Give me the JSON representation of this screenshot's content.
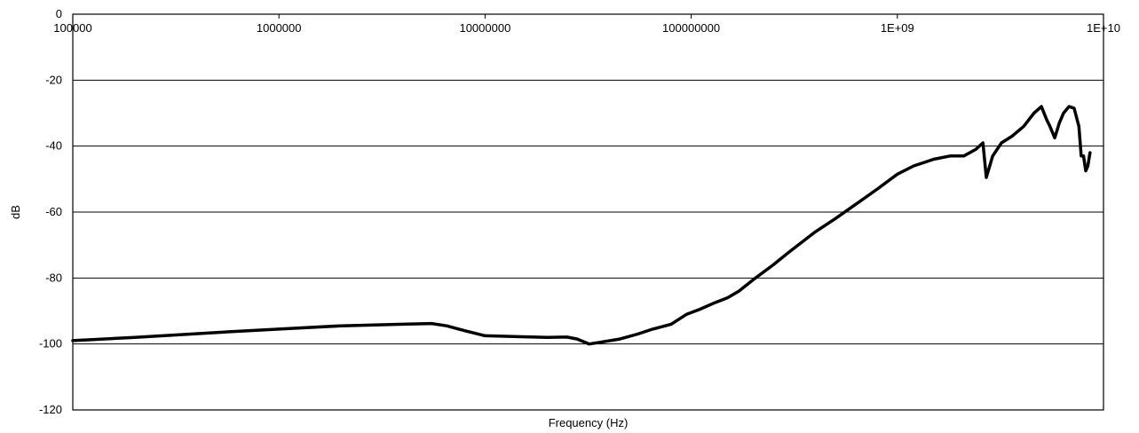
{
  "chart_data": {
    "type": "line",
    "title": "",
    "xlabel": "Frequency (Hz)",
    "ylabel": "dB",
    "x_scale": "log",
    "xlim": [
      100000,
      10000000000
    ],
    "ylim": [
      -120,
      0
    ],
    "grid": "horizontal",
    "legend": "none",
    "x_tick_labels": [
      "100000",
      "1000000",
      "10000000",
      "100000000",
      "1E+09",
      "1E+10"
    ],
    "x_tick_values": [
      100000,
      1000000,
      10000000,
      100000000,
      1000000000,
      10000000000
    ],
    "y_tick_labels": [
      "0",
      "-20",
      "-40",
      "-60",
      "-80",
      "-100",
      "-120"
    ],
    "y_tick_values": [
      0,
      -20,
      -40,
      -60,
      -80,
      -100,
      -120
    ],
    "line_color": "#000000",
    "series": [
      {
        "x": [
          100000,
          200000,
          500000,
          1000000,
          2000000,
          4000000,
          5500000,
          6500000,
          8000000,
          10000000,
          15000000,
          20000000,
          25000000,
          28000000,
          32000000,
          36000000,
          45000000,
          55000000,
          65000000,
          80000000,
          95000000,
          110000000,
          130000000,
          150000000,
          170000000,
          200000000,
          250000000,
          300000000,
          400000000,
          500000000,
          650000000,
          800000000,
          1000000000,
          1200000000,
          1500000000,
          1800000000,
          2100000000,
          2400000000,
          2600000000,
          2700000000,
          2900000000,
          3200000000,
          3600000000,
          4100000000,
          4600000000,
          5000000000,
          5300000000,
          5500000000,
          5800000000,
          6100000000,
          6400000000,
          6800000000,
          7200000000,
          7600000000,
          7800000000,
          8000000000,
          8200000000,
          8400000000,
          8600000000
        ],
        "y": [
          -99,
          -98,
          -96.5,
          -95.5,
          -94.5,
          -94,
          -93.8,
          -94.5,
          -96,
          -97.5,
          -97.8,
          -98,
          -97.9,
          -98.5,
          -100,
          -99.5,
          -98.5,
          -97,
          -95.5,
          -94,
          -91,
          -89.5,
          -87.5,
          -86,
          -84,
          -80.5,
          -76,
          -72,
          -66,
          -62,
          -57,
          -53,
          -48.5,
          -46,
          -44,
          -43,
          -43,
          -41,
          -39,
          -49.5,
          -43,
          -39,
          -37,
          -34,
          -30,
          -28,
          -32,
          -34,
          -37.5,
          -33,
          -30,
          -28,
          -28.5,
          -34,
          -43,
          -43,
          -47.5,
          -46,
          -42
        ]
      }
    ]
  }
}
